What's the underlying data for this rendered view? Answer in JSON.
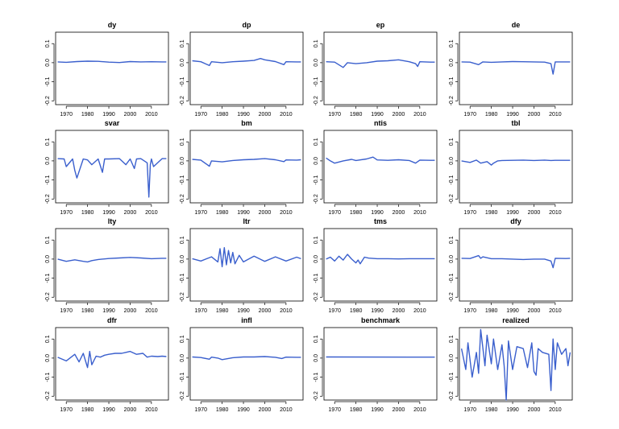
{
  "chart_data": [
    {
      "type": "line",
      "title": "dy",
      "xlim": [
        1965,
        2018
      ],
      "ylim": [
        -0.22,
        0.16
      ],
      "yticks": [
        "-0.2",
        "-0.1",
        "0.0",
        "0.1"
      ],
      "xticks": [
        "1970",
        "1980",
        "1990",
        "2000",
        "2010"
      ],
      "x": [
        1966,
        1970,
        1975,
        1980,
        1985,
        1990,
        1995,
        2000,
        2005,
        2010,
        2015,
        2017
      ],
      "values": [
        0.004,
        0.002,
        0.006,
        0.008,
        0.007,
        0.003,
        0.001,
        0.006,
        0.004,
        0.005,
        0.004,
        0.004
      ]
    },
    {
      "type": "line",
      "title": "dp",
      "xlim": [
        1965,
        2018
      ],
      "ylim": [
        -0.22,
        0.16
      ],
      "yticks": [
        "-0.2",
        "-0.1",
        "0.0",
        "0.1"
      ],
      "xticks": [
        "1970",
        "1980",
        "1990",
        "2000",
        "2010"
      ],
      "x": [
        1966,
        1970,
        1974,
        1975,
        1980,
        1985,
        1990,
        1995,
        1998,
        2000,
        2005,
        2009,
        2010,
        2015,
        2017
      ],
      "values": [
        0.01,
        0.005,
        -0.015,
        0.005,
        0.0,
        0.005,
        0.008,
        0.012,
        0.022,
        0.015,
        0.006,
        -0.01,
        0.005,
        0.004,
        0.004
      ]
    },
    {
      "type": "line",
      "title": "ep",
      "xlim": [
        1965,
        2018
      ],
      "ylim": [
        -0.22,
        0.16
      ],
      "yticks": [
        "-0.2",
        "-0.1",
        "0.0",
        "0.1"
      ],
      "xticks": [
        "1970",
        "1980",
        "1990",
        "2000",
        "2010"
      ],
      "x": [
        1966,
        1970,
        1974,
        1976,
        1980,
        1985,
        1990,
        1995,
        2000,
        2005,
        2008,
        2009,
        2010,
        2015,
        2017
      ],
      "values": [
        0.005,
        0.003,
        -0.025,
        0.0,
        -0.005,
        0.0,
        0.008,
        0.01,
        0.015,
        0.005,
        -0.005,
        -0.02,
        0.005,
        0.003,
        0.003
      ]
    },
    {
      "type": "line",
      "title": "de",
      "xlim": [
        1965,
        2018
      ],
      "ylim": [
        -0.22,
        0.16
      ],
      "yticks": [
        "-0.2",
        "-0.1",
        "0.0",
        "0.1"
      ],
      "xticks": [
        "1970",
        "1980",
        "1990",
        "2000",
        "2010"
      ],
      "x": [
        1966,
        1970,
        1974,
        1976,
        1980,
        1985,
        1990,
        1995,
        2000,
        2005,
        2008,
        2009,
        2010,
        2015,
        2017
      ],
      "values": [
        0.004,
        0.003,
        -0.01,
        0.004,
        0.002,
        0.004,
        0.006,
        0.005,
        0.004,
        0.003,
        -0.005,
        -0.06,
        0.004,
        0.004,
        0.004
      ]
    },
    {
      "type": "line",
      "title": "svar",
      "xlim": [
        1965,
        2018
      ],
      "ylim": [
        -0.22,
        0.16
      ],
      "yticks": [
        "-0.2",
        "-0.1",
        "0.0",
        "0.1"
      ],
      "xticks": [
        "1970",
        "1980",
        "1990",
        "2000",
        "2010"
      ],
      "x": [
        1966,
        1969,
        1970,
        1973,
        1974,
        1975,
        1978,
        1980,
        1982,
        1985,
        1987,
        1988,
        1990,
        1995,
        1998,
        2000,
        2002,
        2003,
        2005,
        2008,
        2008.8,
        2009.5,
        2010,
        2011,
        2015,
        2017
      ],
      "values": [
        0.012,
        0.01,
        -0.03,
        0.01,
        -0.05,
        -0.09,
        0.01,
        0.005,
        -0.02,
        0.01,
        -0.06,
        0.01,
        0.01,
        0.012,
        -0.02,
        0.01,
        -0.04,
        0.01,
        0.012,
        -0.01,
        -0.19,
        -0.02,
        0.01,
        -0.03,
        0.012,
        0.012
      ]
    },
    {
      "type": "line",
      "title": "bm",
      "xlim": [
        1965,
        2018
      ],
      "ylim": [
        -0.22,
        0.16
      ],
      "yticks": [
        "-0.2",
        "-0.1",
        "0.0",
        "0.1"
      ],
      "xticks": [
        "1970",
        "1980",
        "1990",
        "2000",
        "2010"
      ],
      "x": [
        1966,
        1970,
        1973,
        1974,
        1975,
        1980,
        1985,
        1990,
        1995,
        2000,
        2005,
        2009,
        2010,
        2015,
        2017
      ],
      "values": [
        0.008,
        0.004,
        -0.02,
        -0.028,
        0.0,
        -0.005,
        0.002,
        0.006,
        0.008,
        0.012,
        0.006,
        -0.004,
        0.005,
        0.004,
        0.006
      ]
    },
    {
      "type": "line",
      "title": "ntis",
      "xlim": [
        1965,
        2018
      ],
      "ylim": [
        -0.22,
        0.16
      ],
      "yticks": [
        "-0.2",
        "-0.1",
        "0.0",
        "0.1"
      ],
      "xticks": [
        "1970",
        "1980",
        "1990",
        "2000",
        "2010"
      ],
      "x": [
        1966,
        1968,
        1970,
        1974,
        1978,
        1980,
        1985,
        1988,
        1990,
        1995,
        2000,
        2005,
        2008,
        2010,
        2015,
        2017
      ],
      "values": [
        0.015,
        0.0,
        -0.012,
        0.0,
        0.008,
        0.002,
        0.01,
        0.02,
        0.005,
        0.003,
        0.006,
        0.002,
        -0.012,
        0.004,
        0.003,
        0.003
      ]
    },
    {
      "type": "line",
      "title": "tbl",
      "xlim": [
        1965,
        2018
      ],
      "ylim": [
        -0.22,
        0.16
      ],
      "yticks": [
        "-0.2",
        "-0.1",
        "0.0",
        "0.1"
      ],
      "xticks": [
        "1970",
        "1980",
        "1990",
        "2000",
        "2010"
      ],
      "x": [
        1966,
        1970,
        1973,
        1975,
        1978,
        1980,
        1981,
        1983,
        1985,
        1990,
        1995,
        2000,
        2005,
        2008,
        2010,
        2015,
        2017
      ],
      "values": [
        0.0,
        -0.008,
        0.004,
        -0.012,
        -0.004,
        -0.022,
        -0.012,
        0.0,
        0.002,
        0.003,
        0.004,
        0.002,
        0.004,
        0.002,
        0.003,
        0.003,
        0.003
      ]
    },
    {
      "type": "line",
      "title": "lty",
      "xlim": [
        1965,
        2018
      ],
      "ylim": [
        -0.22,
        0.16
      ],
      "yticks": [
        "-0.2",
        "-0.1",
        "0.0",
        "0.1"
      ],
      "xticks": [
        "1970",
        "1980",
        "1990",
        "2000",
        "2010"
      ],
      "x": [
        1966,
        1970,
        1974,
        1978,
        1980,
        1982,
        1985,
        1990,
        1995,
        2000,
        2005,
        2010,
        2015,
        2017
      ],
      "values": [
        0.0,
        -0.012,
        -0.004,
        -0.012,
        -0.015,
        -0.008,
        -0.002,
        0.003,
        0.006,
        0.009,
        0.006,
        0.002,
        0.004,
        0.004
      ]
    },
    {
      "type": "line",
      "title": "ltr",
      "xlim": [
        1965,
        2018
      ],
      "ylim": [
        -0.22,
        0.16
      ],
      "yticks": [
        "-0.2",
        "-0.1",
        "0.0",
        "0.1"
      ],
      "xticks": [
        "1970",
        "1980",
        "1990",
        "2000",
        "2010"
      ],
      "x": [
        1966,
        1970,
        1975,
        1978,
        1979,
        1980,
        1981,
        1982,
        1983,
        1984,
        1985,
        1986,
        1988,
        1990,
        1995,
        2000,
        2005,
        2010,
        2015,
        2017
      ],
      "values": [
        0.002,
        -0.01,
        0.012,
        -0.015,
        0.055,
        -0.04,
        0.06,
        -0.03,
        0.045,
        -0.02,
        0.035,
        -0.025,
        0.02,
        -0.015,
        0.015,
        -0.012,
        0.012,
        -0.01,
        0.01,
        0.002
      ]
    },
    {
      "type": "line",
      "title": "tms",
      "xlim": [
        1965,
        2018
      ],
      "ylim": [
        -0.22,
        0.16
      ],
      "yticks": [
        "-0.2",
        "-0.1",
        "0.0",
        "0.1"
      ],
      "xticks": [
        "1970",
        "1980",
        "1990",
        "2000",
        "2010"
      ],
      "x": [
        1966,
        1968,
        1970,
        1972,
        1974,
        1976,
        1978,
        1980,
        1981,
        1982,
        1984,
        1986,
        1990,
        1995,
        2000,
        2005,
        2010,
        2015,
        2017
      ],
      "values": [
        0.0,
        0.01,
        -0.01,
        0.015,
        -0.005,
        0.025,
        0.0,
        -0.02,
        -0.005,
        -0.025,
        0.01,
        0.005,
        0.002,
        0.002,
        0.001,
        0.002,
        0.002,
        0.002,
        0.002
      ]
    },
    {
      "type": "line",
      "title": "dfy",
      "xlim": [
        1965,
        2018
      ],
      "ylim": [
        -0.22,
        0.16
      ],
      "yticks": [
        "-0.2",
        "-0.1",
        "0.0",
        "0.1"
      ],
      "xticks": [
        "1970",
        "1980",
        "1990",
        "2000",
        "2010"
      ],
      "x": [
        1966,
        1970,
        1974,
        1975,
        1976,
        1980,
        1985,
        1990,
        1995,
        2000,
        2005,
        2008,
        2009,
        2010,
        2015,
        2017
      ],
      "values": [
        0.004,
        0.003,
        0.018,
        0.004,
        0.012,
        0.002,
        0.002,
        0.0,
        -0.002,
        0.0,
        0.0,
        -0.01,
        -0.045,
        0.004,
        0.003,
        0.004
      ]
    },
    {
      "type": "line",
      "title": "dfr",
      "xlim": [
        1965,
        2018
      ],
      "ylim": [
        -0.22,
        0.16
      ],
      "yticks": [
        "-0.2",
        "-0.1",
        "0.0",
        "0.1"
      ],
      "xticks": [
        "1970",
        "1980",
        "1990",
        "2000",
        "2010"
      ],
      "x": [
        1966,
        1970,
        1974,
        1976,
        1978,
        1980,
        1981,
        1982,
        1984,
        1986,
        1988,
        1990,
        1993,
        1996,
        1998,
        2000,
        2003,
        2006,
        2008,
        2010,
        2013,
        2015,
        2017
      ],
      "values": [
        0.004,
        -0.015,
        0.02,
        -0.02,
        0.025,
        -0.05,
        0.035,
        -0.035,
        0.01,
        0.005,
        0.015,
        0.02,
        0.025,
        0.025,
        0.03,
        0.035,
        0.02,
        0.025,
        0.005,
        0.01,
        0.008,
        0.01,
        0.008
      ]
    },
    {
      "type": "line",
      "title": "infl",
      "xlim": [
        1965,
        2018
      ],
      "ylim": [
        -0.22,
        0.16
      ],
      "yticks": [
        "-0.2",
        "-0.1",
        "0.0",
        "0.1"
      ],
      "xticks": [
        "1970",
        "1980",
        "1990",
        "2000",
        "2010"
      ],
      "x": [
        1966,
        1970,
        1974,
        1975,
        1978,
        1980,
        1985,
        1990,
        1995,
        2000,
        2005,
        2008,
        2010,
        2015,
        2017
      ],
      "values": [
        0.006,
        0.003,
        -0.006,
        0.005,
        0.0,
        -0.008,
        0.002,
        0.006,
        0.006,
        0.008,
        0.004,
        -0.002,
        0.005,
        0.004,
        0.004
      ]
    },
    {
      "type": "line",
      "title": "benchmark",
      "xlim": [
        1965,
        2018
      ],
      "ylim": [
        -0.22,
        0.16
      ],
      "yticks": [
        "-0.2",
        "-0.1",
        "0.0",
        "0.1"
      ],
      "xticks": [
        "1970",
        "1980",
        "1990",
        "2000",
        "2010"
      ],
      "x": [
        1966,
        2017
      ],
      "values": [
        0.006,
        0.005
      ]
    },
    {
      "type": "line",
      "title": "realized",
      "xlim": [
        1965,
        2018
      ],
      "ylim": [
        -0.22,
        0.16
      ],
      "yticks": [
        "-0.2",
        "-0.1",
        "0.0",
        "0.1"
      ],
      "xticks": [
        "1970",
        "1980",
        "1990",
        "2000",
        "2010"
      ],
      "x": [
        1966,
        1968,
        1969,
        1971,
        1973,
        1974,
        1975,
        1977,
        1978,
        1980,
        1981,
        1983,
        1985,
        1986,
        1987,
        1988,
        1990,
        1992,
        1995,
        1997,
        1999,
        2000,
        2001,
        2002,
        2004,
        2007,
        2008,
        2009,
        2010,
        2011,
        2013,
        2015,
        2016,
        2017
      ],
      "values": [
        0.05,
        -0.06,
        0.08,
        -0.1,
        0.03,
        -0.08,
        0.15,
        -0.04,
        0.12,
        -0.03,
        0.1,
        -0.06,
        0.07,
        -0.04,
        -0.22,
        0.09,
        -0.06,
        0.06,
        0.05,
        -0.05,
        0.08,
        -0.07,
        -0.09,
        0.05,
        0.03,
        0.02,
        -0.17,
        0.1,
        -0.06,
        0.08,
        0.02,
        0.05,
        -0.04,
        0.03
      ]
    }
  ]
}
